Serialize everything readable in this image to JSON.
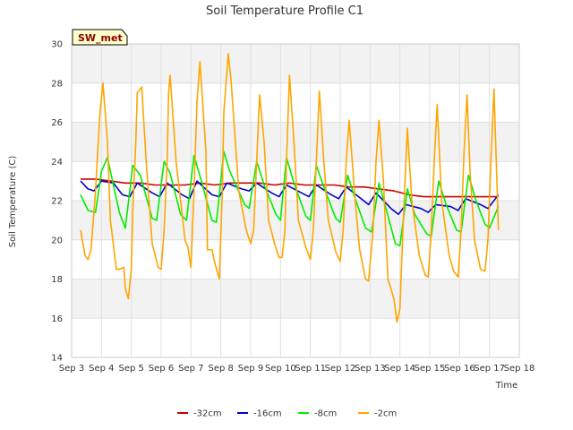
{
  "chart_data": {
    "type": "line",
    "title": "Soil Temperature Profile C1",
    "xlabel": "Time",
    "ylabel": "Soil Temperature (C)",
    "badge": "SW_met",
    "xlim": [
      3,
      18
    ],
    "ylim": [
      14,
      30
    ],
    "x_ticks": [
      3,
      4,
      5,
      6,
      7,
      8,
      9,
      10,
      11,
      12,
      13,
      14,
      15,
      16,
      17,
      18
    ],
    "x_tick_labels": [
      "Sep 3",
      "Sep 4",
      "Sep 5",
      "Sep 6",
      "Sep 7",
      "Sep 8",
      "Sep 9",
      "Sep 10",
      "Sep 11",
      "Sep 12",
      "Sep 13",
      "Sep 14",
      "Sep 15",
      "Sep 16",
      "Sep 17",
      "Sep 18"
    ],
    "y_ticks": [
      14,
      16,
      18,
      20,
      22,
      24,
      26,
      28,
      30
    ],
    "grid": true,
    "legend_position": "bottom",
    "series": [
      {
        "name": "-32cm",
        "color": "#cc0000",
        "x": [
          3.3,
          3.8,
          4.3,
          4.8,
          5.3,
          5.8,
          6.3,
          6.8,
          7.3,
          7.8,
          8.3,
          8.8,
          9.3,
          9.8,
          10.3,
          10.8,
          11.3,
          11.8,
          12.3,
          12.8,
          13.3,
          13.8,
          14.3,
          14.8,
          15.3,
          15.8,
          16.3,
          16.8,
          17.3
        ],
        "y": [
          23.1,
          23.1,
          23.0,
          22.9,
          22.9,
          22.8,
          22.8,
          22.8,
          22.9,
          22.8,
          22.9,
          22.9,
          22.9,
          22.8,
          22.9,
          22.8,
          22.8,
          22.8,
          22.7,
          22.7,
          22.6,
          22.5,
          22.3,
          22.2,
          22.2,
          22.2,
          22.2,
          22.2,
          22.2
        ]
      },
      {
        "name": "-16cm",
        "color": "#0000cc",
        "x": [
          3.3,
          3.55,
          3.75,
          4.0,
          4.4,
          4.7,
          4.95,
          5.2,
          5.7,
          5.95,
          6.2,
          6.7,
          6.95,
          7.2,
          7.7,
          7.95,
          8.2,
          8.7,
          8.95,
          9.2,
          9.7,
          9.95,
          10.2,
          10.7,
          10.95,
          11.2,
          11.7,
          11.95,
          12.2,
          12.7,
          12.95,
          13.2,
          13.7,
          13.95,
          14.2,
          14.7,
          14.95,
          15.2,
          15.7,
          15.95,
          16.2,
          16.7,
          16.95,
          17.3
        ],
        "y": [
          23.0,
          22.6,
          22.5,
          23.0,
          22.9,
          22.3,
          22.2,
          22.9,
          22.4,
          22.2,
          22.9,
          22.3,
          22.1,
          23.0,
          22.3,
          22.2,
          22.9,
          22.6,
          22.5,
          22.9,
          22.4,
          22.2,
          22.8,
          22.4,
          22.2,
          22.8,
          22.3,
          22.1,
          22.7,
          22.1,
          21.8,
          22.4,
          21.6,
          21.3,
          21.8,
          21.6,
          21.4,
          21.8,
          21.7,
          21.5,
          22.1,
          21.8,
          21.6,
          22.3
        ]
      },
      {
        "name": "-8cm",
        "color": "#00ee00",
        "x": [
          3.3,
          3.55,
          3.8,
          4.0,
          4.2,
          4.6,
          4.8,
          5.05,
          5.3,
          5.7,
          5.85,
          6.1,
          6.3,
          6.65,
          6.85,
          7.1,
          7.35,
          7.7,
          7.85,
          8.1,
          8.3,
          8.8,
          8.95,
          9.2,
          9.45,
          9.85,
          10.0,
          10.2,
          10.45,
          10.85,
          11.0,
          11.2,
          11.45,
          11.85,
          12.0,
          12.25,
          12.5,
          12.85,
          13.05,
          13.3,
          13.55,
          13.85,
          14.0,
          14.25,
          14.5,
          14.9,
          15.05,
          15.3,
          15.55,
          15.9,
          16.05,
          16.3,
          16.55,
          16.85,
          17.0,
          17.3
        ],
        "y": [
          22.3,
          21.5,
          21.4,
          23.5,
          24.2,
          21.4,
          20.6,
          23.8,
          23.3,
          21.1,
          21.0,
          24.0,
          23.4,
          21.3,
          21.0,
          24.3,
          23.0,
          21.0,
          20.9,
          24.5,
          23.5,
          21.8,
          21.6,
          24.0,
          22.8,
          21.3,
          21.0,
          24.2,
          22.9,
          21.2,
          21.0,
          23.8,
          22.7,
          21.1,
          20.9,
          23.3,
          22.1,
          20.6,
          20.4,
          22.9,
          21.5,
          19.8,
          19.7,
          22.6,
          21.3,
          20.3,
          20.2,
          23.0,
          21.8,
          20.5,
          20.4,
          23.3,
          22.0,
          20.8,
          20.6,
          21.7
        ]
      },
      {
        "name": "-2cm",
        "color": "#ffa500",
        "x": [
          3.3,
          3.45,
          3.55,
          3.65,
          3.8,
          3.95,
          4.05,
          4.2,
          4.3,
          4.5,
          4.6,
          4.75,
          4.8,
          4.9,
          5.0,
          5.05,
          5.15,
          5.2,
          5.35,
          5.5,
          5.7,
          5.9,
          6.0,
          6.1,
          6.2,
          6.25,
          6.3,
          6.5,
          6.8,
          6.9,
          7.0,
          7.1,
          7.2,
          7.3,
          7.5,
          7.55,
          7.7,
          7.8,
          7.95,
          8.05,
          8.1,
          8.25,
          8.35,
          8.6,
          8.85,
          9.0,
          9.1,
          9.2,
          9.3,
          9.45,
          9.6,
          9.8,
          9.95,
          10.05,
          10.15,
          10.2,
          10.3,
          10.45,
          10.6,
          10.85,
          11.0,
          11.1,
          11.2,
          11.3,
          11.45,
          11.6,
          11.85,
          12.0,
          12.1,
          12.2,
          12.3,
          12.5,
          12.65,
          12.85,
          12.95,
          13.1,
          13.2,
          13.3,
          13.45,
          13.6,
          13.8,
          13.9,
          14.0,
          14.1,
          14.25,
          14.4,
          14.65,
          14.85,
          14.95,
          15.05,
          15.15,
          15.25,
          15.4,
          15.65,
          15.8,
          15.95,
          16.05,
          16.15,
          16.25,
          16.35,
          16.5,
          16.7,
          16.85,
          16.95,
          17.05,
          17.15,
          17.25,
          17.3
        ],
        "y": [
          20.5,
          19.2,
          19.0,
          19.5,
          22.5,
          26.5,
          28.0,
          25.0,
          21.0,
          18.5,
          18.5,
          18.6,
          17.5,
          17.0,
          18.5,
          21.5,
          25.0,
          27.5,
          27.8,
          24.0,
          19.8,
          18.6,
          18.5,
          20.5,
          24.0,
          27.5,
          28.4,
          24.0,
          20.0,
          19.6,
          18.6,
          22.5,
          27.0,
          29.1,
          24.5,
          19.5,
          19.5,
          18.8,
          18.0,
          22.5,
          26.5,
          29.5,
          28.0,
          22.5,
          20.5,
          19.8,
          20.5,
          24.0,
          27.4,
          25.0,
          21.0,
          19.8,
          19.1,
          19.1,
          20.5,
          24.0,
          28.4,
          25.0,
          21.0,
          19.6,
          19.0,
          20.5,
          24.0,
          27.6,
          24.0,
          21.0,
          19.4,
          18.9,
          20.5,
          24.0,
          26.1,
          22.0,
          19.5,
          18.0,
          17.9,
          20.5,
          24.0,
          26.1,
          23.0,
          18.0,
          17.0,
          15.8,
          16.5,
          20.5,
          25.7,
          22.0,
          19.2,
          18.2,
          18.1,
          20.5,
          24.0,
          26.9,
          22.0,
          19.2,
          18.4,
          18.1,
          20.5,
          24.5,
          27.4,
          23.5,
          20.0,
          18.5,
          18.4,
          20.0,
          24.0,
          27.7,
          23.0,
          20.5
        ]
      }
    ]
  }
}
